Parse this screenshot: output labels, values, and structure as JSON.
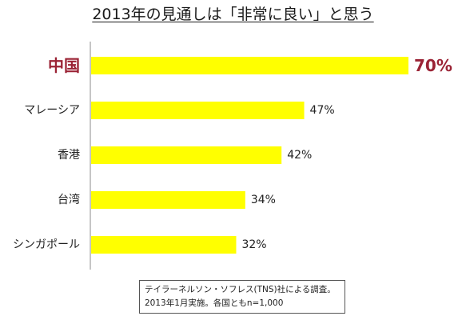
{
  "chart_data": {
    "type": "bar",
    "orientation": "horizontal",
    "title": "2013年の見通しは「非常に良い」と思う",
    "categories": [
      "中国",
      "マレーシア",
      "香港",
      "台湾",
      "シンガポール"
    ],
    "values": [
      70,
      47,
      42,
      34,
      32
    ],
    "data_labels": [
      "70%",
      "47%",
      "42%",
      "34%",
      "32%"
    ],
    "xlim": [
      0,
      70
    ],
    "grid": false,
    "legend": "none",
    "highlight_index": 0
  },
  "colors": {
    "bar": "#ffff00",
    "highlight_text": "#9b2335",
    "axis": "#8c8c8c",
    "text": "#222222"
  },
  "note": {
    "line1": "テイラーネルソン・ソフレス(TNS)社による調査。",
    "line2": "2013年1月実施。各国ともn=1,000"
  }
}
